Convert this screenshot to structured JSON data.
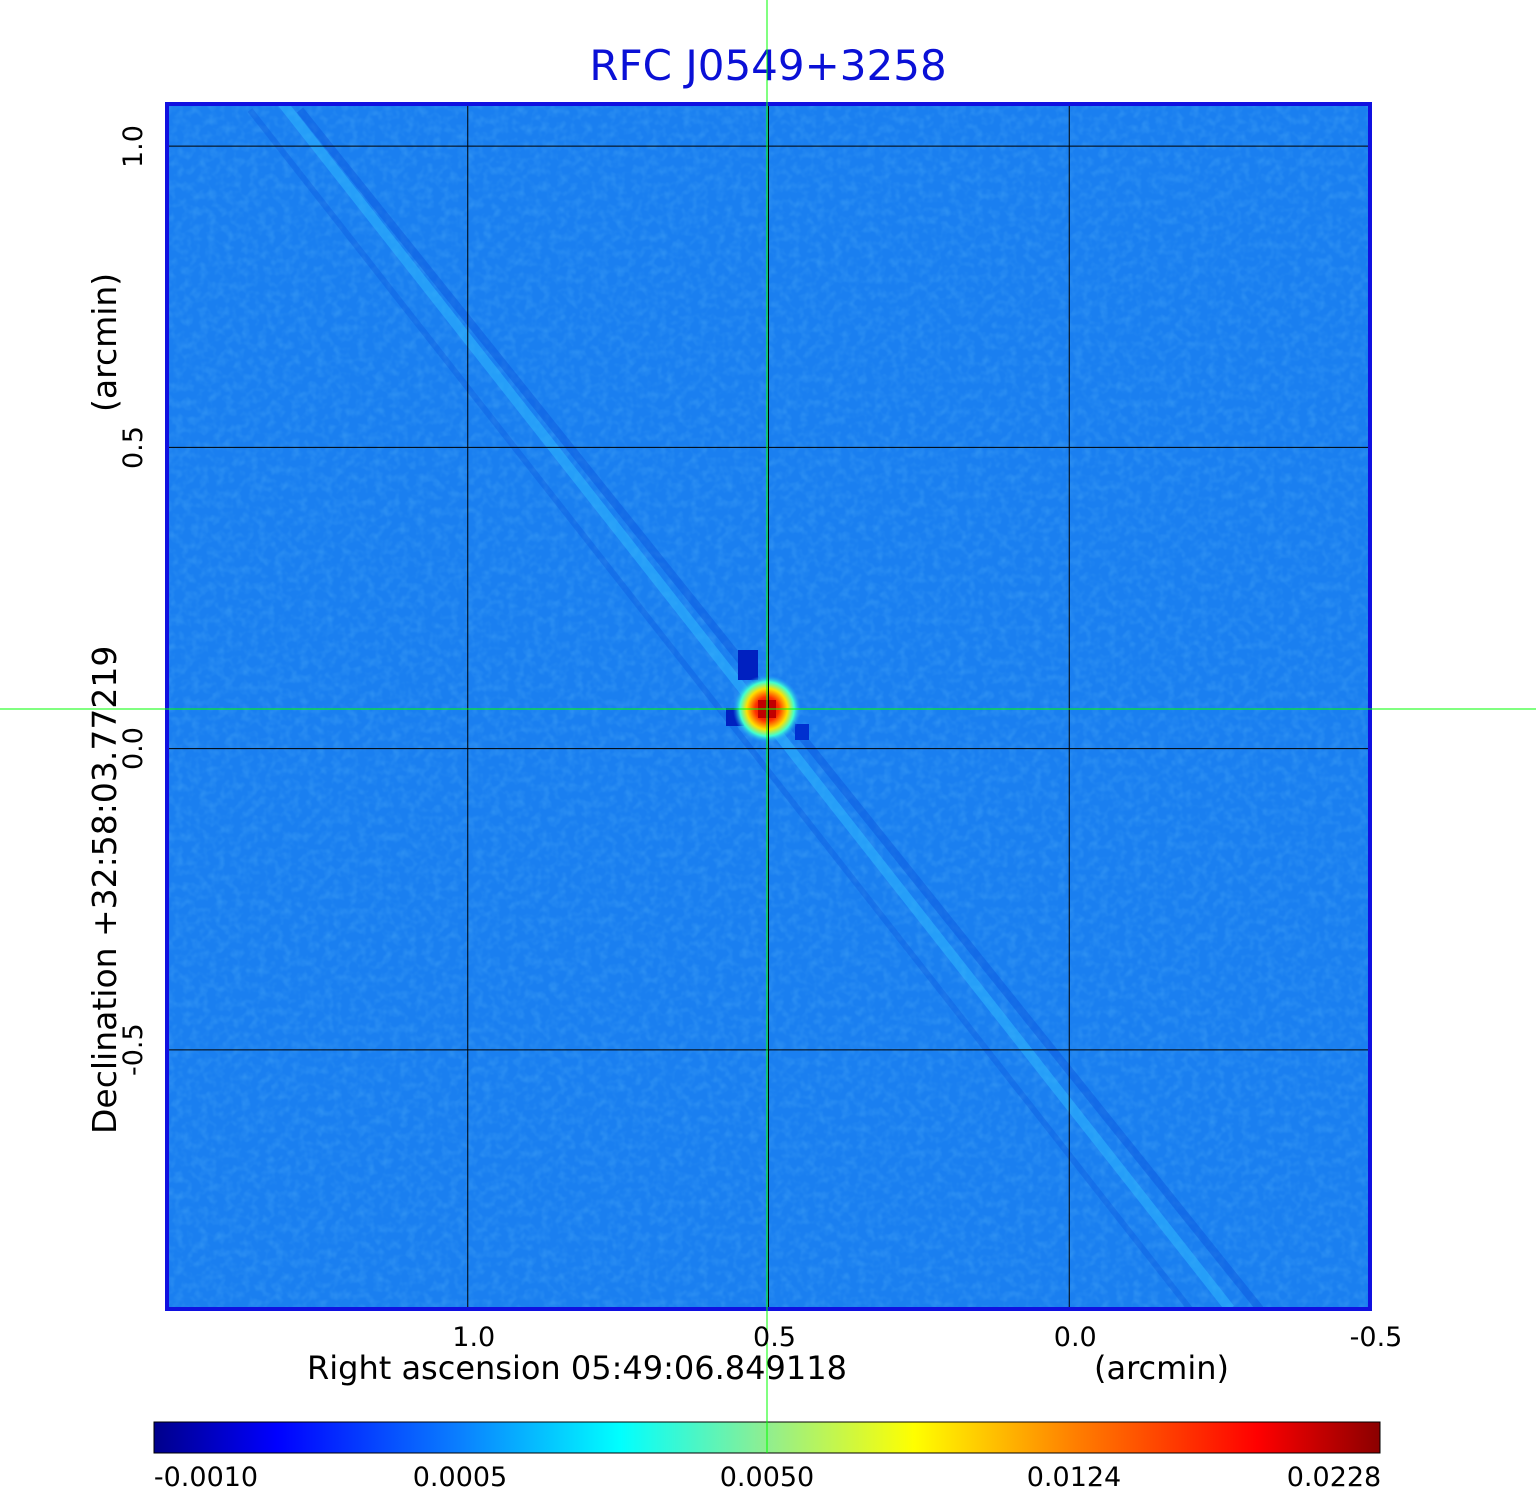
{
  "title": "RFC J0549+3258",
  "x_axis": {
    "label": "Right ascension  05:49:06.849118",
    "unit": "(arcmin)",
    "ticks": [
      {
        "value": 1.0,
        "label": "1.0"
      },
      {
        "value": 0.5,
        "label": "0.5"
      },
      {
        "value": 0.0,
        "label": "0.0"
      },
      {
        "value": -0.5,
        "label": "-0.5"
      }
    ],
    "range": [
      1.5,
      -0.5
    ]
  },
  "y_axis": {
    "label": "Declination  +32:58:03.77219",
    "unit": "(arcmin)",
    "ticks": [
      {
        "value": 1.0,
        "label": "1.0"
      },
      {
        "value": 0.5,
        "label": "0.5"
      },
      {
        "value": 0.0,
        "label": "0.0"
      },
      {
        "value": -0.5,
        "label": "-0.5"
      }
    ],
    "range": [
      -0.93,
      1.07
    ]
  },
  "colorbar": {
    "ticks": [
      "-0.0010",
      "0.0005",
      "0.0050",
      "0.0124",
      "0.0228"
    ],
    "colors": [
      "#00008b",
      "#0000ff",
      "#0a80ff",
      "#00ffff",
      "#90ee90",
      "#ffff00",
      "#ff8000",
      "#ff0000",
      "#8b0000"
    ]
  },
  "colors": {
    "title": "#0a10d6",
    "frame": "#1010e0",
    "background_field": "#1a7ff0",
    "crosshair": "#00ff00",
    "grid": "#000000"
  }
}
